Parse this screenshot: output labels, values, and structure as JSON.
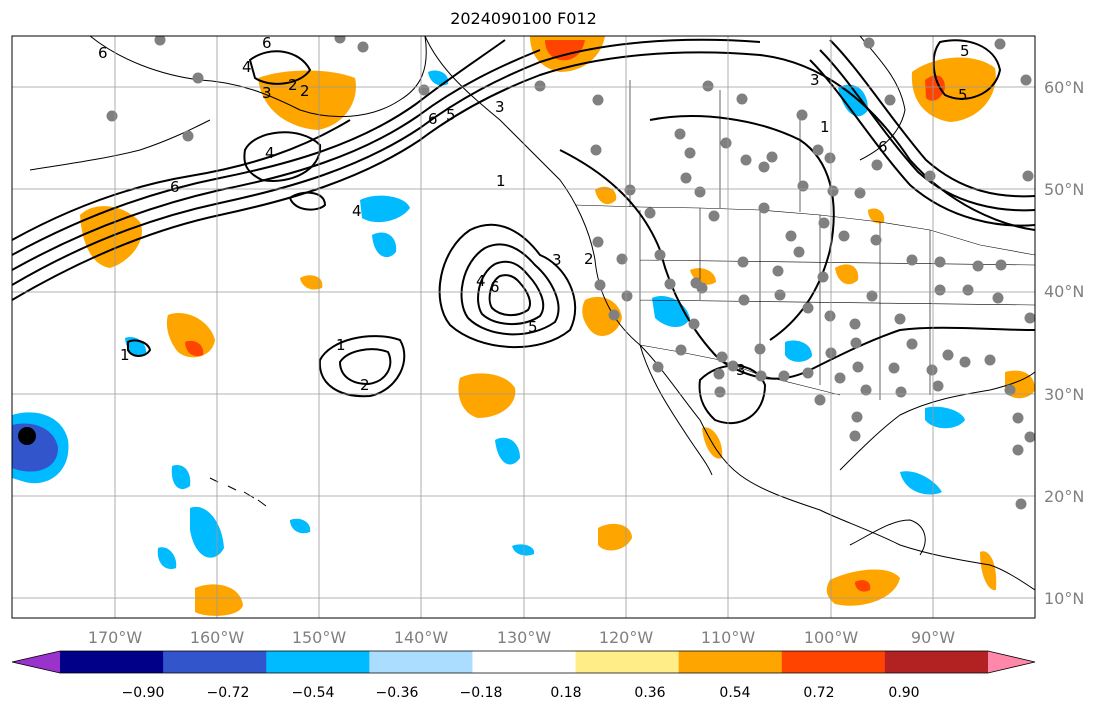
{
  "title": "2024090100 F012",
  "lat_labels": [
    "60°N",
    "50°N",
    "40°N",
    "30°N",
    "20°N",
    "10°N"
  ],
  "lon_labels": [
    "170°W",
    "160°W",
    "150°W",
    "140°W",
    "130°W",
    "120°W",
    "110°W",
    "100°W",
    "90°W"
  ],
  "colorbar": {
    "colors": [
      "#9933cc",
      "#000088",
      "#3355cc",
      "#00bbff",
      "#aaddff",
      "#ffffff",
      "#ffee88",
      "#ffa500",
      "#ff4400",
      "#b22222",
      "#ff88aa"
    ],
    "tick_labels": [
      "−0.90",
      "−0.72",
      "−0.54",
      "−0.36",
      "−0.18",
      "0.18",
      "0.36",
      "0.54",
      "0.72",
      "0.90"
    ]
  },
  "contour_labels": [
    "6",
    "4",
    "3",
    "2",
    "6",
    "4",
    "6",
    "4",
    "3",
    "5",
    "6",
    "1",
    "4",
    "3",
    "2",
    "5",
    "6",
    "5",
    "1",
    "2",
    "1",
    "3",
    "3",
    "1",
    "6",
    "5",
    "2"
  ],
  "station_marker_color": "#808080",
  "storm_marker_color": "#000000"
}
